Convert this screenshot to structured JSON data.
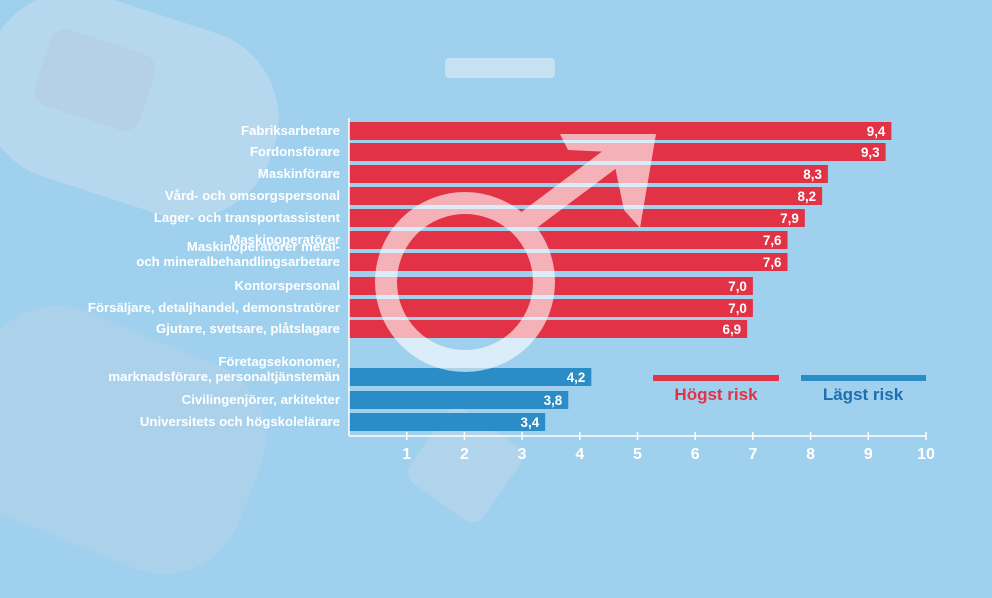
{
  "chart_data": {
    "type": "bar",
    "orientation": "horizontal",
    "categories": [
      "Fabriksarbetare",
      "Fordonsförare",
      "Maskinförare",
      "Vård- och omsorgspersonal",
      "Lager- och transportassistent",
      "Maskinoperatörer",
      "Maskinoperatörer metal-\noch mineralbehandlingsarbetare",
      "Kontorspersonal",
      "Försäljare, detaljhandel, demonstratörer",
      "Gjutare, svetsare, plåtslagare",
      "Företagsekonomer,\nmarknadsförare, personaltjänstemän",
      "Civilingenjörer, arkitekter",
      "Universitets och högskolelärare"
    ],
    "value_labels": [
      "9,4",
      "9,3",
      "8,3",
      "8,2",
      "7,9",
      "7,6",
      "7,6",
      "7,0",
      "7,0",
      "6,9",
      "4,2",
      "3,8",
      "3,4"
    ],
    "values": [
      9.4,
      9.3,
      8.3,
      8.2,
      7.9,
      7.6,
      7.6,
      7.0,
      7.0,
      6.9,
      4.2,
      3.8,
      3.4
    ],
    "groups": [
      "high",
      "high",
      "high",
      "high",
      "high",
      "high",
      "high",
      "high",
      "high",
      "high",
      "low",
      "low",
      "low"
    ],
    "series": [
      {
        "name": "Högst risk",
        "color": "#e23246"
      },
      {
        "name": "Lägst risk",
        "color": "#2b8cc6"
      }
    ],
    "xticks": [
      "1",
      "2",
      "3",
      "4",
      "5",
      "6",
      "7",
      "8",
      "9",
      "10"
    ],
    "xlim": [
      0,
      10
    ],
    "title": "",
    "xlabel": "",
    "ylabel": "",
    "legend_position": "right",
    "grid": false
  },
  "colors": {
    "high": "#e23246",
    "low": "#2b8cc6",
    "legend_high_text": "#e23246",
    "legend_low_text": "#1f6fb0",
    "axis": "#ffffff",
    "background": "#9fd0ee"
  },
  "decoration": {
    "symbol": "male-symbol-icon"
  }
}
